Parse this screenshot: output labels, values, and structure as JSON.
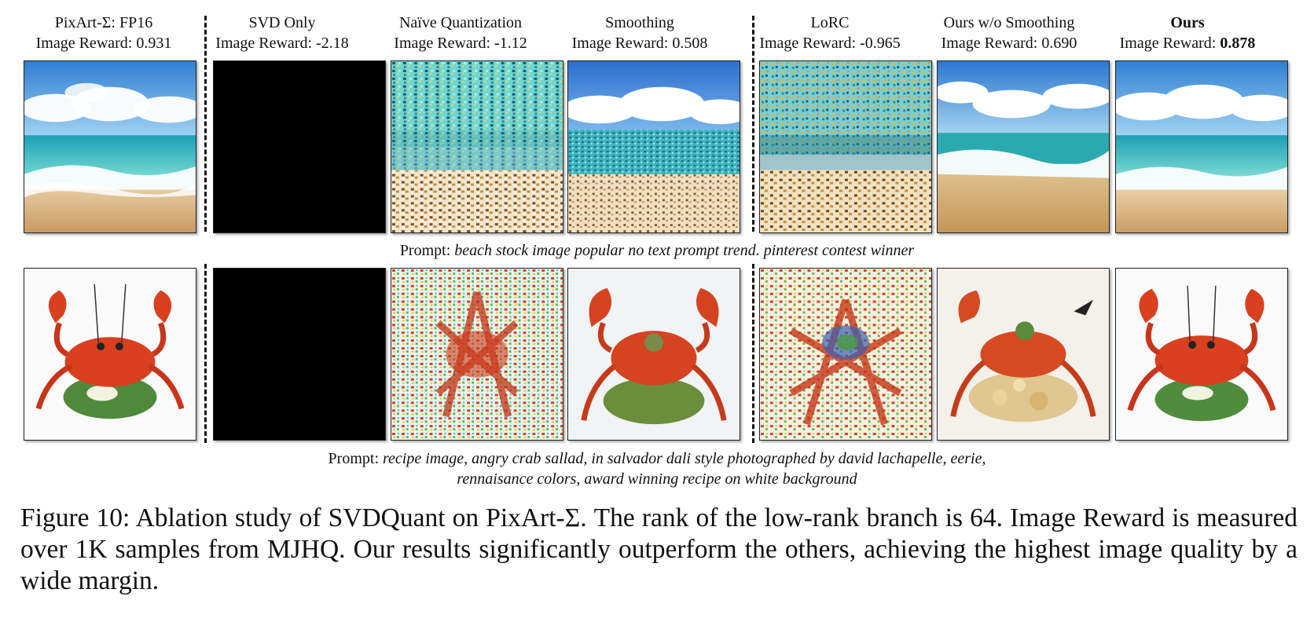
{
  "columns": [
    {
      "title": "PixArt-Σ: FP16",
      "score_label": "Image Reward: ",
      "score": "0.931"
    },
    {
      "title": "SVD Only",
      "score_label": "Image Reward: ",
      "score": "-2.18"
    },
    {
      "title": "Naïve Quantization",
      "score_label": "Image Reward: ",
      "score": "-1.12"
    },
    {
      "title": "Smoothing",
      "score_label": "Image Reward: ",
      "score": "0.508"
    },
    {
      "title": "LoRC",
      "score_label": "Image Reward: ",
      "score": "-0.965"
    },
    {
      "title": "Ours w/o Smoothing",
      "score_label": "Image Reward: ",
      "score": "0.690"
    },
    {
      "title": "Ours",
      "score_label": "Image Reward: ",
      "score": "0.878"
    }
  ],
  "prompts": {
    "beach": {
      "label": "Prompt: ",
      "text": "beach stock image popular no text prompt trend. pinterest contest winner"
    },
    "crab": {
      "label": "Prompt: ",
      "text_line1": "recipe image, angry crab sallad, in salvador dali style photographed by david lachapelle, eerie,",
      "text_line2": "rennaisance colors, award winning recipe on white background"
    }
  },
  "caption": "Figure 10: Ablation study of SVDQuant on PixArt-Σ. The rank of the low-rank branch is 64. Image Reward is measured over 1K samples from MJHQ. Our results significantly outperform the others, achieving the highest image quality by a wide margin.",
  "colors": {
    "sky": "#3f8fd6",
    "sea": "#2fb6b8",
    "sand": "#d8b07c",
    "crab": "#d8401f",
    "black_tile": "#000000"
  }
}
